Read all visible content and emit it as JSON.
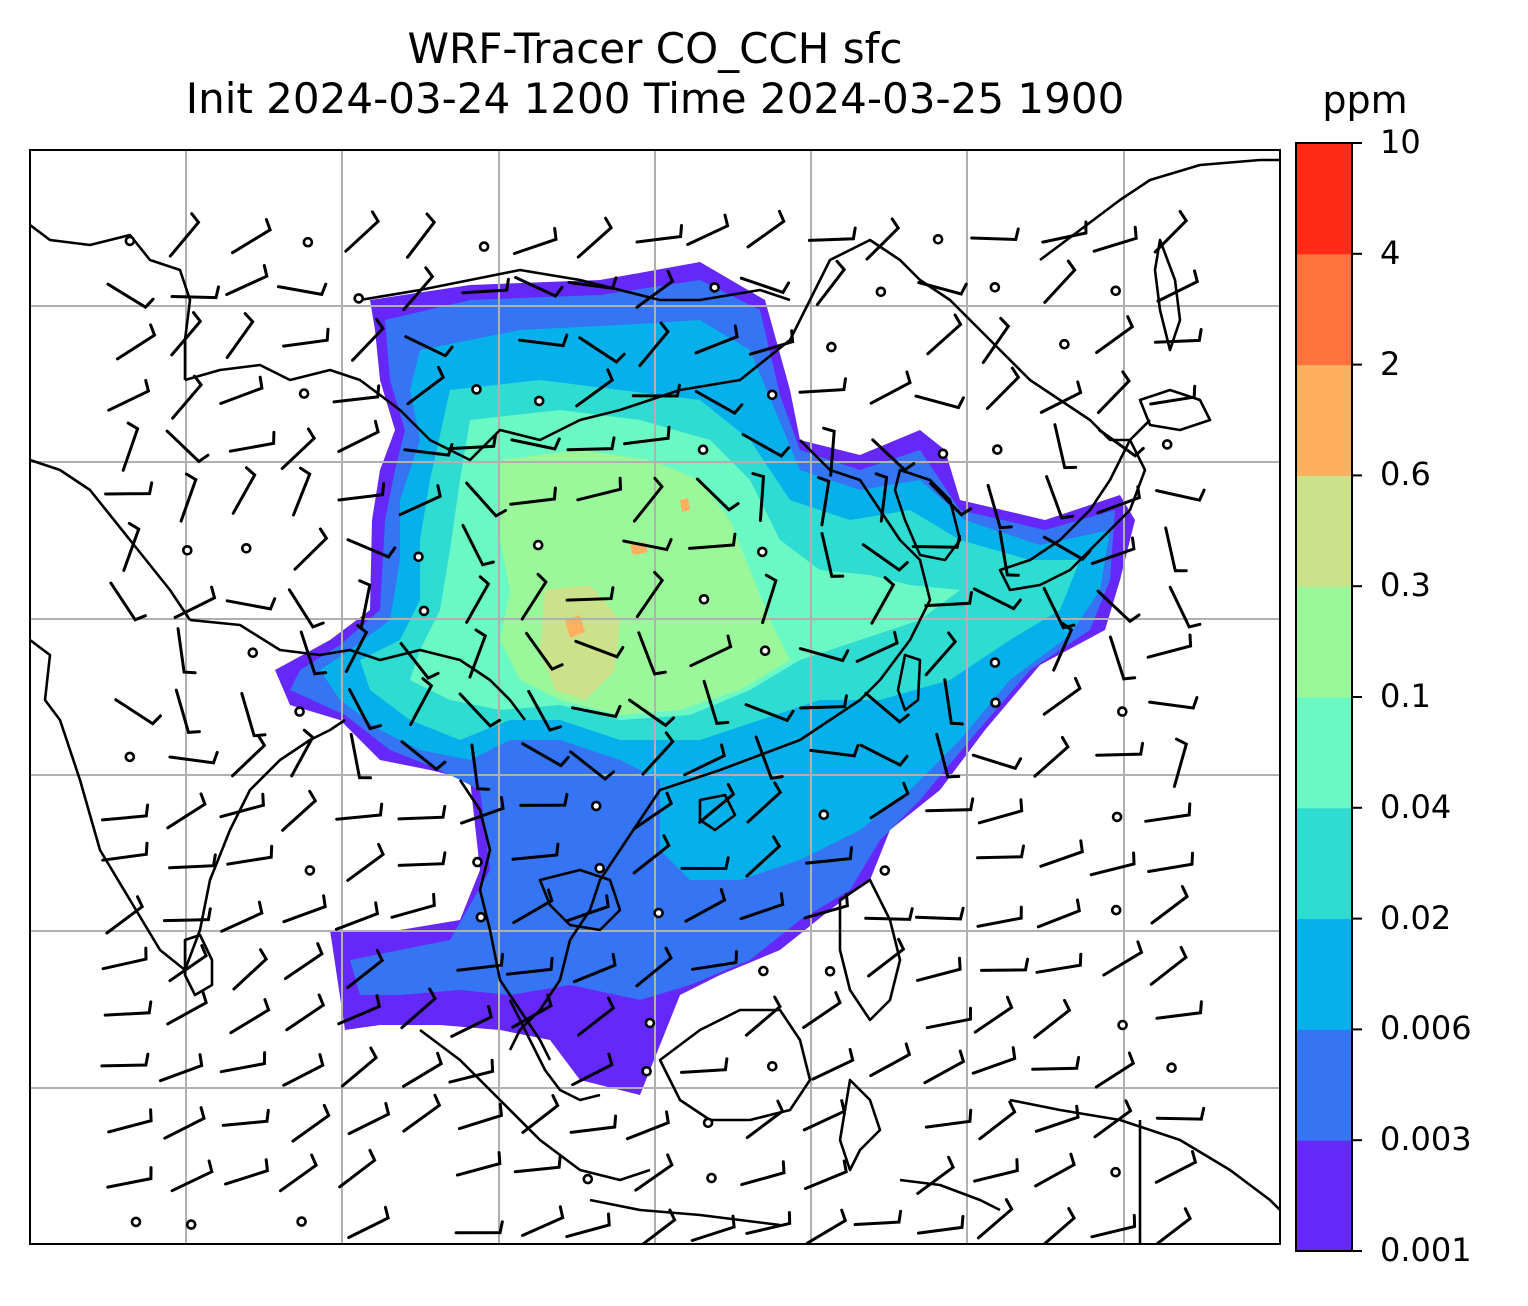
{
  "title": {
    "line1": "WRF-Tracer CO_CCH sfc",
    "line2": "Init 2024-03-24 1200 Time 2024-03-25 1900"
  },
  "colorbar": {
    "unit": "ppm",
    "levels": [
      "0.001",
      "0.003",
      "0.006",
      "0.02",
      "0.04",
      "0.1",
      "0.3",
      "0.6",
      "2",
      "4",
      "10"
    ],
    "colors": [
      "#6528f8",
      "#3574f2",
      "#06b0ea",
      "#2fdcd2",
      "#6af8c4",
      "#9af89a",
      "#cce28a",
      "#ffb05f",
      "#ff713d",
      "#ff2b16"
    ]
  },
  "map": {
    "region": "South and East Asia",
    "features": [
      "coastlines",
      "lat-lon gridlines",
      "tracer concentration fill",
      "wind barbs",
      "calm-wind circles"
    ]
  }
}
